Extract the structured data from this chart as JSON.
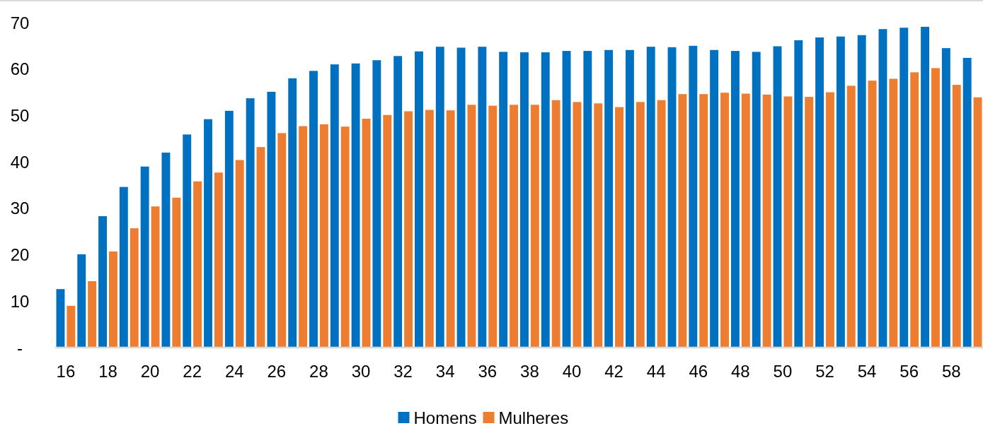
{
  "chart_data": {
    "type": "bar",
    "categories": [
      "16",
      null,
      "18",
      null,
      "20",
      null,
      "22",
      null,
      "24",
      null,
      "26",
      null,
      "28",
      null,
      "30",
      null,
      "32",
      null,
      "34",
      null,
      "36",
      null,
      "38",
      null,
      "40",
      null,
      "42",
      null,
      "44",
      null,
      "46",
      null,
      "48",
      null,
      "50",
      null,
      "52",
      null,
      "54",
      null,
      "56",
      null,
      "58",
      null
    ],
    "series": [
      {
        "name": "Homens",
        "color": "#0070c0",
        "values": [
          12.6,
          20.1,
          28.3,
          34.6,
          39.0,
          42.0,
          45.9,
          49.2,
          51.0,
          53.7,
          55.1,
          58.0,
          59.6,
          61.0,
          61.2,
          61.9,
          62.8,
          63.8,
          64.8,
          64.6,
          64.8,
          63.7,
          63.6,
          63.6,
          63.9,
          63.9,
          64.1,
          64.1,
          64.8,
          64.7,
          65.0,
          64.1,
          63.9,
          63.7,
          64.9,
          66.2,
          66.8,
          67.0,
          67.3,
          68.6,
          68.9,
          69.1,
          64.5,
          62.4
        ]
      },
      {
        "name": "Mulheres",
        "color": "#ed7d31",
        "values": [
          9.0,
          14.3,
          20.7,
          25.7,
          30.4,
          32.3,
          35.8,
          37.7,
          40.4,
          43.2,
          46.2,
          47.7,
          48.1,
          47.6,
          49.3,
          50.1,
          50.9,
          51.2,
          51.1,
          52.3,
          52.1,
          52.3,
          52.3,
          53.3,
          52.9,
          52.6,
          51.8,
          52.9,
          53.3,
          54.6,
          54.6,
          54.9,
          54.7,
          54.5,
          54.1,
          54.0,
          55.0,
          56.4,
          57.5,
          57.9,
          59.3,
          60.2,
          56.6,
          53.9
        ]
      }
    ],
    "ylim": [
      0,
      70
    ],
    "yticks": [
      {
        "value": 0,
        "label": "-"
      },
      10,
      20,
      30,
      40,
      50,
      60,
      70
    ],
    "grid": false,
    "legend": "bottom"
  }
}
